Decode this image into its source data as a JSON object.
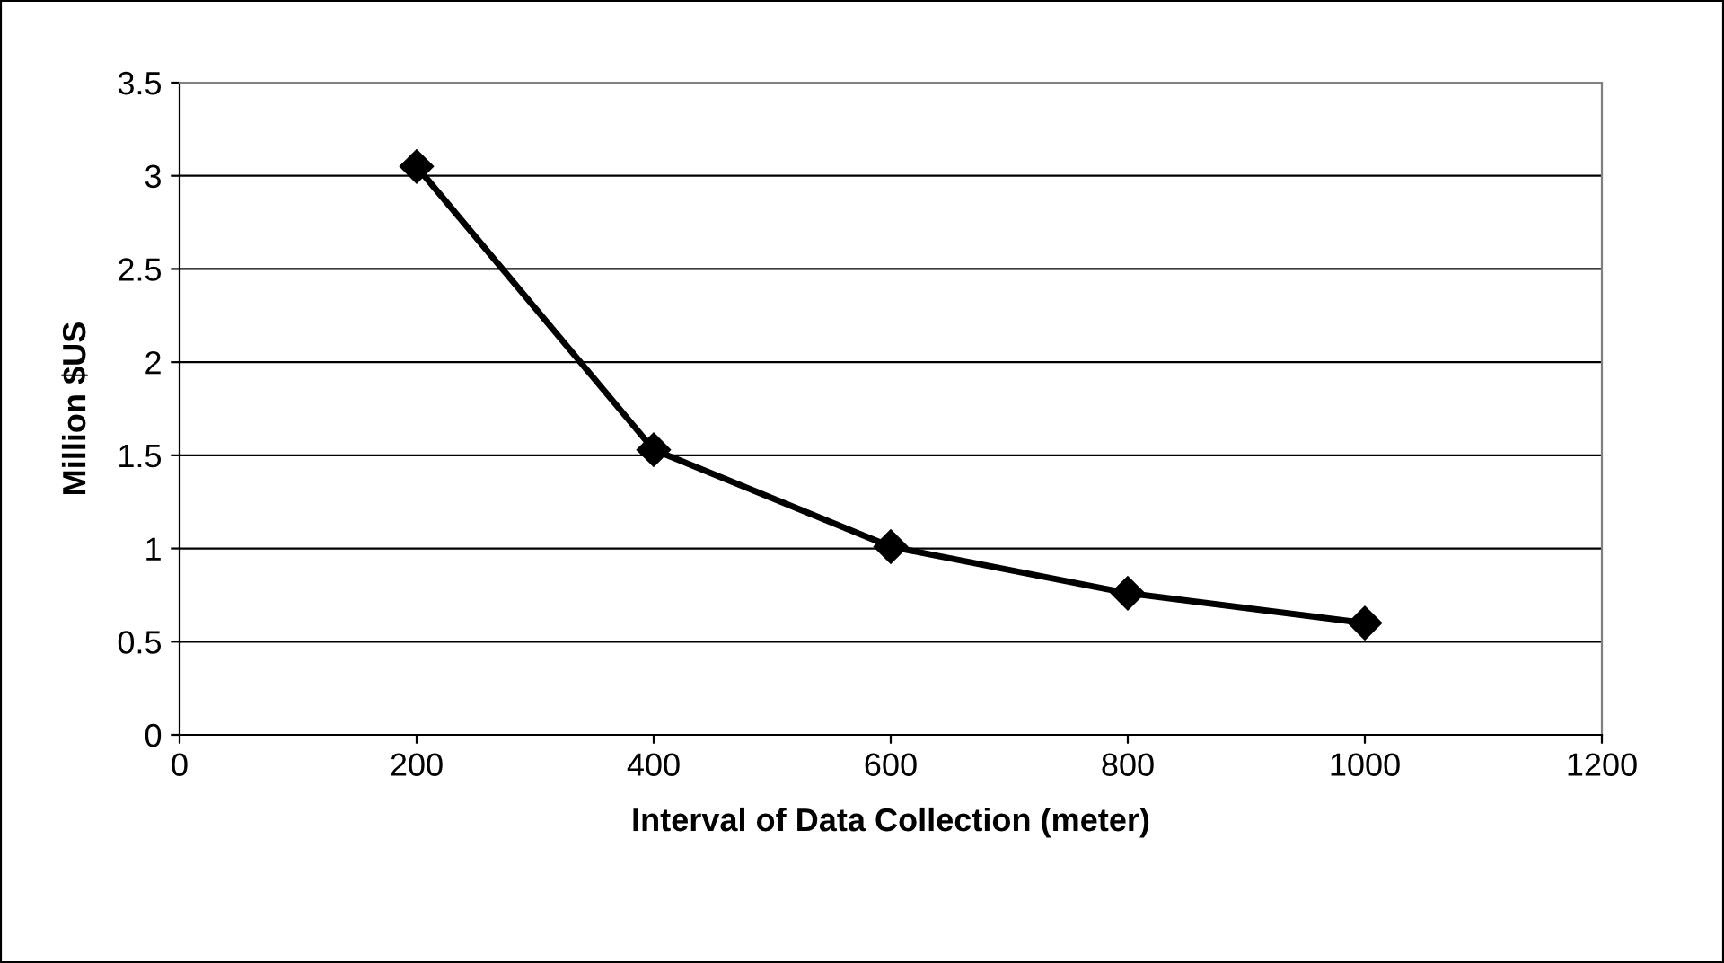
{
  "chart_data": {
    "type": "line",
    "xlabel": "Interval of Data Collection (meter)",
    "ylabel": "Million $US",
    "x": [
      200,
      400,
      600,
      800,
      1000
    ],
    "series": [
      {
        "color": "#000000",
        "values": [
          3.05,
          1.53,
          1.01,
          0.76,
          0.6
        ]
      }
    ],
    "xlim": [
      0,
      1200
    ],
    "xticks": [
      0,
      200,
      400,
      600,
      800,
      1000,
      1200
    ],
    "ylim": [
      0,
      3.5
    ],
    "yticks": [
      0,
      0.5,
      1,
      1.5,
      2,
      2.5,
      3,
      3.5
    ],
    "grid": "y",
    "marker": "diamond",
    "line_style": "solid"
  }
}
